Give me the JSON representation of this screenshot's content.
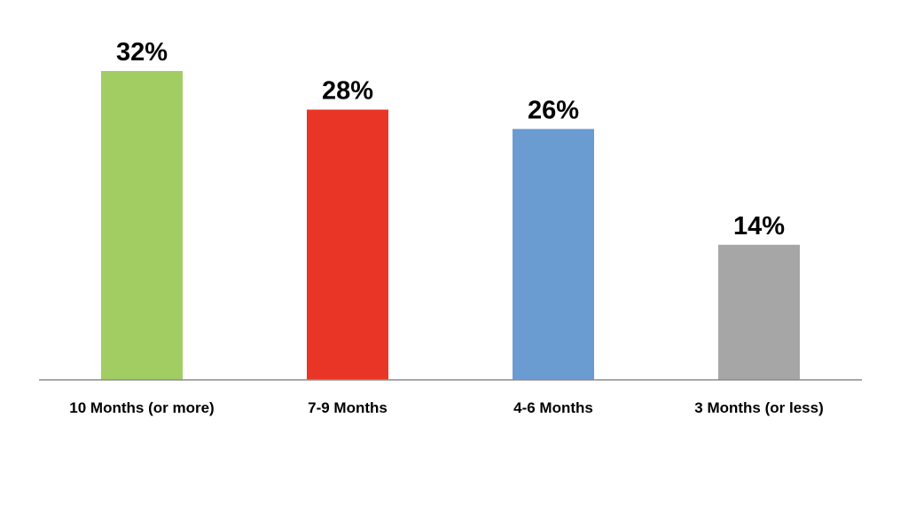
{
  "chart_data": {
    "type": "bar",
    "title": "",
    "xlabel": "",
    "ylabel": "",
    "categories": [
      "10 Months (or more)",
      "7-9 Months",
      "4-6 Months",
      "3 Months (or less)"
    ],
    "values": [
      32,
      28,
      26,
      14
    ],
    "value_labels": [
      "32%",
      "28%",
      "26%",
      "14%"
    ],
    "unit": "%",
    "colors": [
      "#A2CD63",
      "#E93525",
      "#6A9BD1",
      "#A6A6A6"
    ],
    "ylim": [
      0,
      32
    ],
    "grid": false,
    "legend": "none",
    "y_axis_visible": false
  }
}
